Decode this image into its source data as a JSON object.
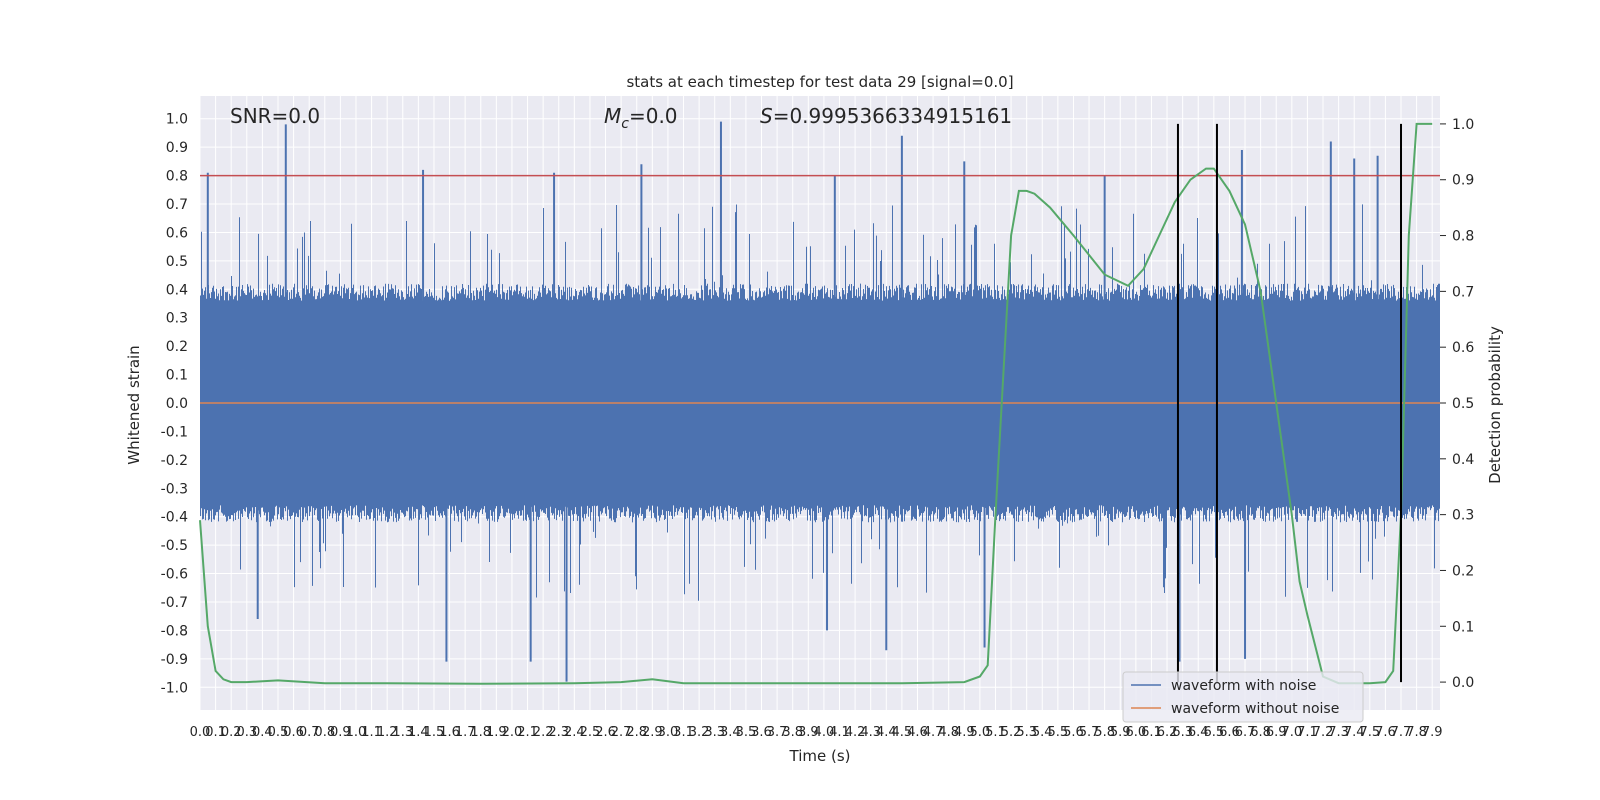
{
  "chart_data": {
    "type": "line",
    "title": "stats at each timestep for test data 29 [signal=0.0]",
    "xlabel": "Time (s)",
    "ylabel_left": "Whitened strain",
    "ylabel_right": "Detection probability",
    "xlim": [
      0.0,
      7.95
    ],
    "ylim_left": [
      -1.08,
      1.08
    ],
    "ylim_right": [
      -0.05,
      1.05
    ],
    "grid": true,
    "legend_position": "lower-right",
    "x_tick_labels": [
      "0.0",
      "0.1",
      "0.2",
      "0.3",
      "0.4",
      "0.5",
      "0.6",
      "0.7",
      "0.8",
      "0.9",
      "1.0",
      "1.1",
      "1.2",
      "1.3",
      "1.4",
      "1.5",
      "1.6",
      "1.7",
      "1.8",
      "1.9",
      "2.0",
      "2.1",
      "2.2",
      "2.3",
      "2.4",
      "2.5",
      "2.6",
      "2.7",
      "2.8",
      "2.9",
      "3.0",
      "3.1",
      "3.2",
      "3.3",
      "3.4",
      "3.5",
      "3.6",
      "3.7",
      "3.8",
      "3.9",
      "4.0",
      "4.1",
      "4.2",
      "4.3",
      "4.4",
      "4.5",
      "4.6",
      "4.7",
      "4.8",
      "4.9",
      "5.0",
      "5.1",
      "5.2",
      "5.3",
      "5.4",
      "5.5",
      "5.6",
      "5.7",
      "5.8",
      "5.9",
      "6.0",
      "6.1",
      "6.2",
      "6.3",
      "6.4",
      "6.5",
      "6.6",
      "6.7",
      "6.8",
      "6.9",
      "7.0",
      "7.1",
      "7.2",
      "7.3",
      "7.4",
      "7.5",
      "7.6",
      "7.7",
      "7.8",
      "7.9"
    ],
    "y_left_tick_labels": [
      "1.0",
      "0.9",
      "0.8",
      "0.7",
      "0.6",
      "0.5",
      "0.4",
      "0.3",
      "0.2",
      "0.1",
      "0.0",
      "-0.1",
      "-0.2",
      "-0.3",
      "-0.4",
      "-0.5",
      "-0.6",
      "-0.7",
      "-0.8",
      "-0.9",
      "-1.0"
    ],
    "y_right_tick_labels": [
      "1.0",
      "0.9",
      "0.8",
      "0.7",
      "0.6",
      "0.5",
      "0.4",
      "0.3",
      "0.2",
      "0.1",
      "0.0"
    ],
    "annotations": {
      "snr": "SNR=0.0",
      "mc_symbol": "M",
      "mc_sub": "c",
      "mc_value": "=0.0",
      "s_symbol": "S",
      "s_value": "=0.9995366334915161"
    },
    "threshold_line": {
      "axis": "left",
      "y": 0.8,
      "color": "#c44e52"
    },
    "vertical_lines_x": [
      6.27,
      6.52,
      7.7
    ],
    "series": [
      {
        "name": "waveform with noise",
        "axis": "left",
        "color": "#4c72b0",
        "description": "dense noise band mostly within ±0.4, spikes up to ~0.98 and down to ~-0.98",
        "spikes_x": [
          0.05,
          0.55,
          1.43,
          2.27,
          2.83,
          3.34,
          4.07,
          4.5,
          4.9,
          5.8,
          6.68,
          7.25,
          7.4,
          7.55
        ],
        "spikes_y": [
          0.81,
          0.98,
          0.82,
          0.81,
          0.84,
          0.99,
          0.8,
          0.94,
          0.85,
          0.8,
          0.89,
          0.92,
          0.86,
          0.87
        ],
        "dips_x": [
          0.37,
          1.58,
          2.12,
          2.35,
          4.02,
          4.4,
          5.03,
          6.28,
          6.7
        ],
        "dips_y": [
          -0.76,
          -0.91,
          -0.91,
          -0.98,
          -0.8,
          -0.87,
          -0.86,
          -0.91,
          -0.9
        ]
      },
      {
        "name": "waveform without noise",
        "axis": "left",
        "color": "#dd8452",
        "x": [
          0.0,
          7.95
        ],
        "y": [
          0.0,
          0.0
        ]
      },
      {
        "name": "",
        "axis": "right",
        "color": "#55a868",
        "x": [
          0.0,
          0.05,
          0.1,
          0.15,
          0.2,
          0.3,
          0.5,
          0.8,
          1.2,
          1.8,
          2.4,
          2.7,
          2.9,
          3.1,
          3.5,
          4.0,
          4.5,
          4.9,
          5.0,
          5.05,
          5.1,
          5.15,
          5.2,
          5.25,
          5.3,
          5.35,
          5.45,
          5.6,
          5.8,
          5.95,
          6.05,
          6.15,
          6.25,
          6.35,
          6.45,
          6.5,
          6.6,
          6.7,
          6.8,
          6.9,
          7.0,
          7.05,
          7.1,
          7.2,
          7.3,
          7.5,
          7.6,
          7.65,
          7.7,
          7.75,
          7.8,
          7.85,
          7.9
        ],
        "y": [
          0.29,
          0.1,
          0.02,
          0.005,
          0.0,
          0.0,
          0.003,
          -0.002,
          -0.002,
          -0.003,
          -0.002,
          0.0,
          0.005,
          -0.002,
          -0.002,
          -0.002,
          -0.002,
          0.0,
          0.01,
          0.03,
          0.3,
          0.55,
          0.8,
          0.88,
          0.88,
          0.875,
          0.85,
          0.8,
          0.73,
          0.71,
          0.74,
          0.8,
          0.86,
          0.9,
          0.92,
          0.92,
          0.88,
          0.82,
          0.7,
          0.5,
          0.3,
          0.18,
          0.12,
          0.01,
          -0.002,
          -0.002,
          0.0,
          0.02,
          0.3,
          0.8,
          1.0,
          1.0,
          1.0
        ]
      }
    ]
  }
}
